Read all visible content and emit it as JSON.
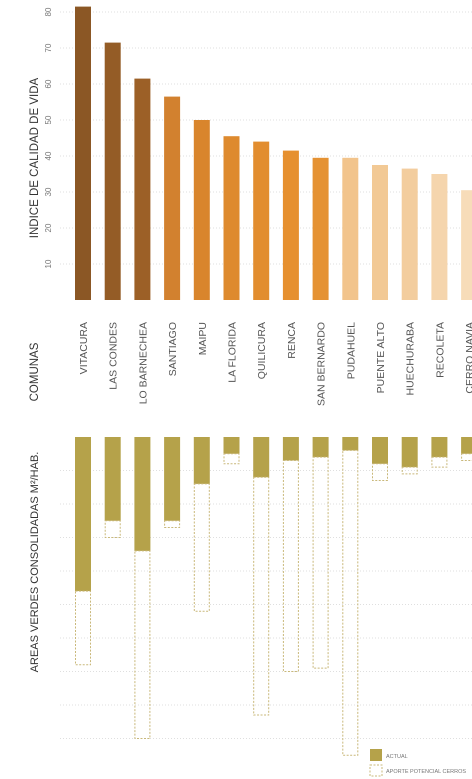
{
  "chart_data": [
    {
      "type": "bar",
      "ylabel": "INDICE DE CALIDAD DE VIDA",
      "yticks": [
        10,
        20,
        30,
        40,
        50,
        60,
        70,
        80
      ],
      "ylim": [
        0,
        80
      ],
      "grid": true,
      "categories": [
        "VITACURA",
        "LAS CONDES",
        "LO BARNECHEA",
        "SANTIAGO",
        "MAIPU",
        "LA FLORIDA",
        "QUILICURA",
        "RENCA",
        "SAN BERNARDO",
        "PUDAHUEL",
        "PUENTE ALTO",
        "HUECHURABA",
        "RECOLETA",
        "CERRO NAVIA"
      ],
      "values": [
        81.5,
        71.5,
        61.5,
        56.5,
        50.0,
        45.5,
        44.0,
        41.5,
        39.5,
        39.5,
        37.5,
        36.5,
        35.0,
        30.5
      ],
      "colors": [
        "#8b5725",
        "#945c26",
        "#9c6027",
        "#d2812f",
        "#d9852c",
        "#de8a2e",
        "#e28d2f",
        "#e6902f",
        "#e59233",
        "#f2c48c",
        "#f2c995",
        "#f3cd9e",
        "#f5d5ad",
        "#f7dcb9"
      ]
    },
    {
      "type": "bar",
      "xlabel": "COMUNAS",
      "ylabel": "AREAS VERDES CONSOLIDADAS  M²/HAB.",
      "categories": [
        "VITACURA",
        "LAS CONDES",
        "LO BARNECHEA",
        "SANTIAGO",
        "MAIPU",
        "LA FLORIDA",
        "QUILICURA",
        "RENCA",
        "SAN BERNARDO",
        "PUDAHUEL",
        "PUENTE ALTO",
        "HUECHURABA",
        "RECOLETA",
        "CERRO NAVIA"
      ],
      "series": [
        {
          "name": "ACTUAL",
          "values": [
            4.6,
            2.5,
            3.4,
            2.5,
            1.4,
            0.5,
            1.2,
            0.7,
            0.6,
            0.4,
            0.8,
            0.9,
            0.6,
            0.5
          ]
        },
        {
          "name": "APORTE POTENCIAL CERROS",
          "values": [
            2.2,
            0.5,
            5.6,
            0.2,
            3.8,
            0.3,
            7.1,
            6.3,
            6.3,
            9.1,
            0.5,
            0.2,
            0.3,
            0.2
          ]
        }
      ],
      "colors": {
        "actual": "#b5a24a",
        "potential": "#c9b87a"
      },
      "grid": true,
      "legend_position": "bottom-right"
    }
  ]
}
